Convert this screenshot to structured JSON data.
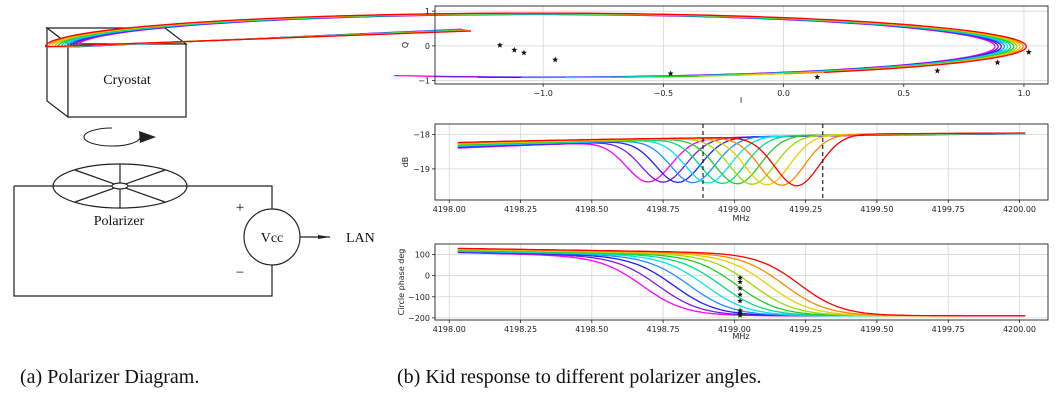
{
  "diagram": {
    "cryostat_label": "Cryostat",
    "polarizer_label": "Polarizer",
    "vcc_label": "Vcc",
    "lan_label": "LAN",
    "plus_sign": "+",
    "minus_sign": "−"
  },
  "captions": {
    "a": "(a) Polarizer Diagram.",
    "b": "(b) Kid response to different polarizer angles."
  },
  "chart_data": [
    {
      "type": "line",
      "name": "IQ circles",
      "xlabel": "I",
      "ylabel": "Q",
      "xlim": [
        -1.45,
        1.1
      ],
      "ylim": [
        -1.1,
        1.15
      ],
      "xticks": [
        -1.0,
        -0.5,
        0.0,
        0.5,
        1.0
      ],
      "xticklabels": [
        "−1.0",
        "−0.5",
        "0.0",
        "0.5",
        "1.0"
      ],
      "yticks": [
        1,
        0,
        -1
      ],
      "yticklabels": [
        "1",
        "0",
        "−1"
      ],
      "grid": true,
      "series_count": 10,
      "markers": "star at operating point of each curve"
    },
    {
      "type": "line",
      "name": "Amplitude",
      "xlabel": "MHz",
      "ylabel": "dB",
      "xlim": [
        4197.95,
        4200.1
      ],
      "ylim": [
        -19.9,
        -17.7
      ],
      "xticks": [
        4198.0,
        4198.25,
        4198.5,
        4198.75,
        4199.0,
        4199.25,
        4199.5,
        4199.75,
        4200.0
      ],
      "xticklabels": [
        "4198.00",
        "4198.25",
        "4198.50",
        "4198.75",
        "4199.00",
        "4199.25",
        "4199.50",
        "4199.75",
        "4200.00"
      ],
      "yticks": [
        -18,
        -19
      ],
      "yticklabels": [
        "−18",
        "−19"
      ],
      "vlines": [
        4198.89,
        4199.31
      ],
      "grid": true,
      "resonance_centers": [
        4198.73,
        4198.78,
        4198.83,
        4198.88,
        4198.93,
        4198.98,
        4199.03,
        4199.08,
        4199.14,
        4199.2
      ]
    },
    {
      "type": "line",
      "name": "Phase",
      "xlabel": "MHz",
      "ylabel": "Circle phase deg",
      "xlim": [
        4197.95,
        4200.1
      ],
      "ylim": [
        -210,
        150
      ],
      "xticks": [
        4198.0,
        4198.25,
        4198.5,
        4198.75,
        4199.0,
        4199.25,
        4199.5,
        4199.75,
        4200.0
      ],
      "xticklabels": [
        "4198.00",
        "4198.25",
        "4198.50",
        "4198.75",
        "4199.00",
        "4199.25",
        "4199.50",
        "4199.75",
        "4200.00"
      ],
      "yticks": [
        100,
        0,
        -100,
        -200
      ],
      "yticklabels": [
        "100",
        "0",
        "−100",
        "−200"
      ],
      "grid": true,
      "marker_x": 4199.02
    }
  ],
  "colors": [
    "#ff00ff",
    "#7a1cd6",
    "#2020ff",
    "#1e90ff",
    "#00e5ee",
    "#00dd88",
    "#22cc22",
    "#99dd00",
    "#eecc00",
    "#ff8800",
    "#ff0000"
  ]
}
